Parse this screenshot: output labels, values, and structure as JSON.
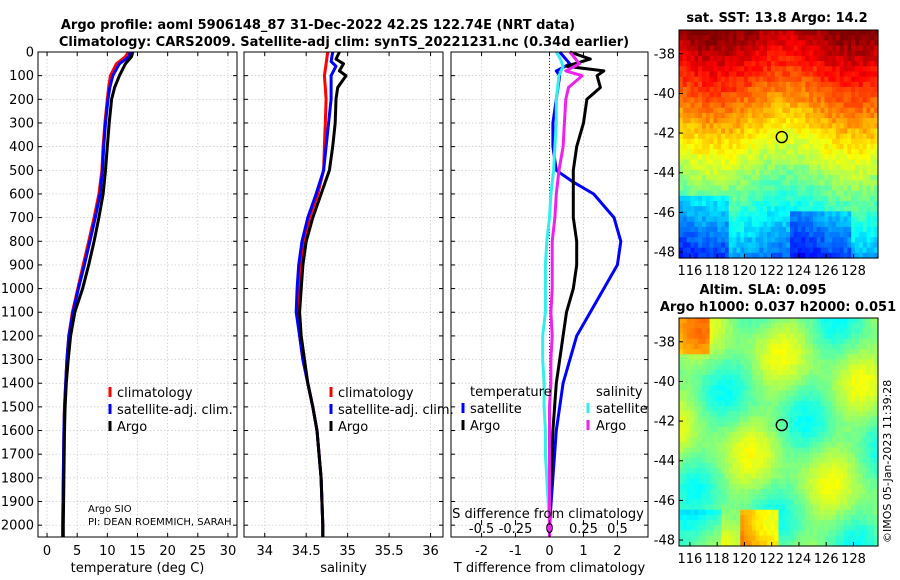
{
  "title_line1": "Argo profile: aoml 5906148_87 31-Dec-2022 42.2S 122.74E (NRT data)",
  "title_line2": "Climatology: CARS2009. Satellite-adj clim: synTS_20221231.nc (0.34d earlier)",
  "side_label": "©IMOS 05-Jan-2023 11:39:28",
  "argo_info": {
    "line1": "Argo SIO",
    "line2": "PI: DEAN ROEMMICH, SARAH"
  },
  "colors": {
    "clim": "#ff0000",
    "sat": "#0000ff",
    "argo": "#000000",
    "sal_sat": "#33eeee",
    "sal_argo": "#ee22ee"
  },
  "chart_data": [
    {
      "type": "line",
      "id": "temperature",
      "xlabel": "temperature (deg C)",
      "ylabel": "",
      "xlim": [
        -1.5,
        31.5
      ],
      "ylim": [
        2050,
        0
      ],
      "xticks": [
        0,
        5,
        10,
        15,
        20,
        25,
        30
      ],
      "yticks": [
        0,
        100,
        200,
        300,
        400,
        500,
        600,
        700,
        800,
        900,
        1000,
        1100,
        1200,
        1300,
        1400,
        1500,
        1600,
        1700,
        1800,
        1900,
        2000
      ],
      "legend": [
        "climatology",
        "satellite-adj. clim.",
        "Argo"
      ],
      "series": [
        {
          "name": "climatology",
          "color": "#ff0000",
          "depth": [
            0,
            20,
            50,
            100,
            150,
            200,
            300,
            400,
            500,
            600,
            700,
            800,
            900,
            1000,
            1100,
            1200,
            1300,
            1400,
            1500,
            1600,
            1800,
            2000,
            2050
          ],
          "values": [
            13.5,
            13,
            11.5,
            10.5,
            10.2,
            10,
            9.6,
            9.3,
            9.1,
            8.6,
            7.8,
            6.9,
            6,
            5.1,
            4.2,
            3.6,
            3.3,
            3.1,
            2.9,
            2.8,
            2.7,
            2.6,
            2.6
          ]
        },
        {
          "name": "satellite-adj. clim.",
          "color": "#0000ff",
          "depth": [
            0,
            20,
            50,
            100,
            150,
            200,
            300,
            400,
            500,
            600,
            700,
            800,
            900,
            1000,
            1100,
            1200,
            1300,
            1400,
            1500,
            1600,
            1800,
            2000,
            2050
          ],
          "values": [
            13.8,
            13.6,
            12,
            10.9,
            10.4,
            10.1,
            9.7,
            9.4,
            9.2,
            8.8,
            8,
            7.1,
            6.2,
            5.2,
            4.3,
            3.6,
            3.3,
            3.1,
            2.9,
            2.8,
            2.7,
            2.6,
            2.6
          ]
        },
        {
          "name": "Argo",
          "color": "#000000",
          "depth": [
            0,
            20,
            50,
            100,
            150,
            200,
            300,
            400,
            500,
            600,
            700,
            800,
            900,
            1000,
            1100,
            1200,
            1300,
            1400,
            1500,
            1600,
            1800,
            2000,
            2050
          ],
          "values": [
            14.2,
            14,
            13,
            12,
            11.2,
            10.7,
            10.3,
            10,
            9.7,
            9.3,
            8.6,
            7.8,
            6.9,
            5.9,
            4.6,
            3.9,
            3.5,
            3.2,
            3,
            2.9,
            2.8,
            2.7,
            2.7
          ]
        }
      ]
    },
    {
      "type": "line",
      "id": "salinity",
      "xlabel": "salinity",
      "xlim": [
        33.75,
        36.15
      ],
      "ylim": [
        2050,
        0
      ],
      "xticks": [
        34,
        34.5,
        35,
        35.5,
        36
      ],
      "legend": [
        "climatology",
        "satellite-adj. clim.",
        "Argo"
      ],
      "series": [
        {
          "name": "climatology",
          "color": "#ff0000",
          "depth": [
            0,
            50,
            100,
            150,
            200,
            300,
            400,
            500,
            600,
            700,
            800,
            900,
            1000,
            1100,
            1200,
            1300,
            1400,
            1500,
            1600,
            1800,
            2000,
            2050
          ],
          "values": [
            34.76,
            34.74,
            34.72,
            34.73,
            34.74,
            34.73,
            34.72,
            34.71,
            34.64,
            34.54,
            34.48,
            34.44,
            34.42,
            34.41,
            34.42,
            34.46,
            34.52,
            34.58,
            34.63,
            34.68,
            34.7,
            34.7
          ]
        },
        {
          "name": "satellite-adj. clim.",
          "color": "#0000ff",
          "depth": [
            0,
            40,
            60,
            100,
            150,
            200,
            300,
            400,
            500,
            600,
            700,
            800,
            900,
            1000,
            1100,
            1200,
            1300,
            1400,
            1500,
            1600,
            1800,
            2000,
            2050
          ],
          "values": [
            34.82,
            34.8,
            34.86,
            34.8,
            34.8,
            34.8,
            34.77,
            34.74,
            34.71,
            34.62,
            34.52,
            34.45,
            34.41,
            34.39,
            34.38,
            34.42,
            34.46,
            34.52,
            34.58,
            34.63,
            34.68,
            34.7,
            34.7
          ]
        },
        {
          "name": "Argo",
          "color": "#000000",
          "depth": [
            0,
            30,
            50,
            80,
            100,
            150,
            200,
            300,
            400,
            500,
            600,
            700,
            800,
            900,
            1000,
            1100,
            1200,
            1300,
            1400,
            1500,
            1600,
            1800,
            2000,
            2050
          ],
          "values": [
            34.9,
            34.86,
            34.95,
            34.9,
            34.98,
            34.88,
            34.86,
            34.85,
            34.82,
            34.78,
            34.68,
            34.58,
            34.5,
            34.46,
            34.44,
            34.42,
            34.44,
            34.48,
            34.52,
            34.58,
            34.63,
            34.68,
            34.7,
            34.7
          ]
        }
      ]
    },
    {
      "type": "line",
      "id": "difference",
      "xlabel": "T difference from climatology",
      "top_xlabel": "S difference from climatology",
      "xlim": [
        -2.9,
        2.9
      ],
      "ylim": [
        2050,
        0
      ],
      "xticks": [
        -2,
        -1,
        0,
        1,
        2
      ],
      "top_ticks": [
        -0.5,
        -0.25,
        0,
        0.25,
        0.5
      ],
      "top_tick_labels": [
        "-0.5",
        "-0.25",
        "0",
        "0.25",
        "0.5"
      ],
      "legend_temperature": {
        "header": "temperature",
        "items": [
          "satellite",
          "Argo"
        ]
      },
      "legend_salinity": {
        "header": "salinity",
        "items": [
          "satellite",
          "Argo"
        ]
      },
      "series": [
        {
          "name": "T satellite",
          "color": "#0000ff",
          "depth": [
            0,
            50,
            80,
            100,
            200,
            300,
            400,
            500,
            550,
            600,
            700,
            800,
            900,
            1000,
            1100,
            1200,
            1300,
            1400,
            1500,
            1600,
            1800,
            2000,
            2050
          ],
          "values": [
            0.3,
            0.6,
            0.2,
            0.3,
            0.2,
            0.1,
            0.1,
            0.2,
            0.7,
            1.3,
            1.9,
            2.1,
            2,
            1.6,
            1.2,
            0.8,
            0.6,
            0.4,
            0.3,
            0.2,
            0.1,
            0,
            0
          ]
        },
        {
          "name": "T Argo",
          "color": "#000000",
          "depth": [
            0,
            30,
            60,
            80,
            100,
            150,
            200,
            300,
            400,
            500,
            600,
            700,
            800,
            900,
            1000,
            1100,
            1200,
            1300,
            1400,
            1500,
            1600,
            1800,
            2000,
            2050
          ],
          "values": [
            0.6,
            1.2,
            0.5,
            1.6,
            1.4,
            1.5,
            1.1,
            1,
            0.8,
            0.7,
            0.7,
            0.7,
            0.8,
            0.8,
            0.7,
            0.5,
            0.4,
            0.3,
            0.2,
            0.15,
            0.1,
            0.05,
            0,
            0
          ]
        },
        {
          "name": "S satellite",
          "color": "#33eeee",
          "depth": [
            0,
            30,
            60,
            100,
            200,
            300,
            400,
            500,
            600,
            700,
            800,
            900,
            1000,
            1100,
            1200,
            1300,
            1400,
            1500,
            1600,
            1700,
            1800,
            1900,
            2000,
            2050
          ],
          "values": [
            0.05,
            0.08,
            0.1,
            0.07,
            0.05,
            0.05,
            0.04,
            0.03,
            0.01,
            0.0,
            -0.02,
            -0.03,
            -0.03,
            -0.03,
            -0.05,
            -0.05,
            -0.04,
            -0.04,
            -0.03,
            -0.03,
            -0.02,
            -0.01,
            0,
            0
          ]
        },
        {
          "name": "S Argo",
          "color": "#ee22ee",
          "depth": [
            0,
            50,
            80,
            100,
            150,
            200,
            300,
            400,
            500,
            600,
            700,
            800,
            900,
            1000,
            1100,
            1200,
            1300,
            1400,
            1500,
            1600,
            1800,
            2000,
            2050
          ],
          "values": [
            0.15,
            0.22,
            0.12,
            0.24,
            0.14,
            0.12,
            0.11,
            0.1,
            0.07,
            0.05,
            0.04,
            0.02,
            0.02,
            0.02,
            0.01,
            0.02,
            0.01,
            0.01,
            0,
            0,
            0,
            0,
            0
          ]
        }
      ]
    },
    {
      "type": "heatmap",
      "id": "sst-map",
      "title": "sat. SST: 13.8 Argo: 14.2",
      "xlim": [
        115.2,
        129.8
      ],
      "ylim": [
        -48.3,
        -36.8
      ],
      "xticks": [
        116,
        118,
        120,
        122,
        124,
        126,
        128
      ],
      "yticks": [
        -38,
        -40,
        -42,
        -44,
        -46,
        -48
      ],
      "marker": {
        "lon": 122.74,
        "lat": -42.2
      }
    },
    {
      "type": "heatmap",
      "id": "sla-map",
      "title_line1": "Altim. SLA: 0.095",
      "title_line2": "Argo h1000: 0.037 h2000: 0.051",
      "xlim": [
        115.2,
        129.8
      ],
      "ylim": [
        -48.3,
        -36.8
      ],
      "xticks": [
        116,
        118,
        120,
        122,
        124,
        126,
        128
      ],
      "yticks": [
        -38,
        -40,
        -42,
        -44,
        -46,
        -48
      ],
      "marker": {
        "lon": 122.74,
        "lat": -42.2
      }
    }
  ]
}
